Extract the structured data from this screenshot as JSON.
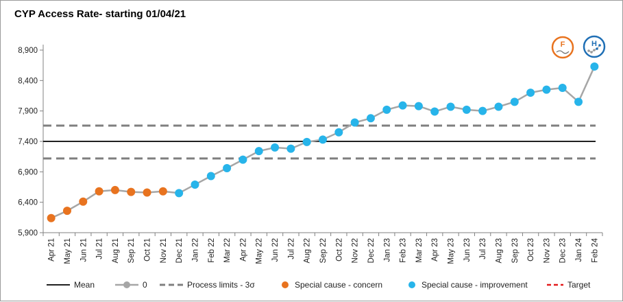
{
  "chart_data": {
    "type": "line",
    "title": "CYP Access Rate- starting 01/04/21",
    "xlabel": "",
    "ylabel": "",
    "ylim": [
      5900,
      8900
    ],
    "yticks": [
      5900,
      6400,
      6900,
      7400,
      7900,
      8400,
      8900
    ],
    "ytick_labels": [
      "5,900",
      "6,400",
      "6,900",
      "7,400",
      "7,900",
      "8,400",
      "8,900"
    ],
    "categories": [
      "Apr 21",
      "May 21",
      "Jun 21",
      "Jul 21",
      "Aug 21",
      "Sep 21",
      "Oct 21",
      "Nov 21",
      "Dec 21",
      "Jan 22",
      "Feb 22",
      "Mar 22",
      "Apr 22",
      "May 22",
      "Jun 22",
      "Jul 22",
      "Aug 22",
      "Sep 22",
      "Oct 22",
      "Nov 22",
      "Dec 22",
      "Jan 23",
      "Feb 23",
      "Mar 23",
      "Apr 23",
      "May 23",
      "Jun 23",
      "Jul 23",
      "Aug 23",
      "Sep 23",
      "Oct 23",
      "Nov 23",
      "Dec 23",
      "Jan 24",
      "Feb 24"
    ],
    "series": [
      {
        "name": "0",
        "values": [
          6140,
          6260,
          6410,
          6580,
          6600,
          6570,
          6560,
          6580,
          6550,
          6690,
          6830,
          6960,
          7100,
          7240,
          7300,
          7280,
          7390,
          7430,
          7550,
          7710,
          7780,
          7920,
          7990,
          7980,
          7890,
          7970,
          7920,
          7900,
          7970,
          8050,
          8200,
          8250,
          8280,
          8050,
          8630
        ],
        "point_types": [
          "concern",
          "concern",
          "concern",
          "concern",
          "concern",
          "concern",
          "concern",
          "concern",
          "improvement",
          "improvement",
          "improvement",
          "improvement",
          "improvement",
          "improvement",
          "improvement",
          "improvement",
          "improvement",
          "improvement",
          "improvement",
          "improvement",
          "improvement",
          "improvement",
          "improvement",
          "improvement",
          "improvement",
          "improvement",
          "improvement",
          "improvement",
          "improvement",
          "improvement",
          "improvement",
          "improvement",
          "improvement",
          "improvement",
          "improvement"
        ]
      }
    ],
    "mean": 7400,
    "upper_process_limit": 7660,
    "lower_process_limit": 7120,
    "grid": false,
    "legend_position": "bottom",
    "legend": [
      {
        "label": "Mean",
        "kind": "mean"
      },
      {
        "label": "0",
        "kind": "series"
      },
      {
        "label": "Process limits - 3σ",
        "kind": "limits"
      },
      {
        "label": "Special cause - concern",
        "kind": "concern"
      },
      {
        "label": "Special cause  - improvement",
        "kind": "improvement"
      },
      {
        "label": "Target",
        "kind": "target"
      }
    ],
    "icons": [
      {
        "name": "assurance-fail-icon",
        "letter": "F",
        "color": "#e8731f"
      },
      {
        "name": "variation-improvement-high-icon",
        "letter": "H",
        "color": "#1f6fb5"
      }
    ],
    "colors": {
      "concern": "#e8731f",
      "improvement": "#27b4ea",
      "line": "#a6a6a6",
      "mean": "#000000",
      "limits": "#7f7f7f",
      "target": "#e31a1c"
    }
  }
}
